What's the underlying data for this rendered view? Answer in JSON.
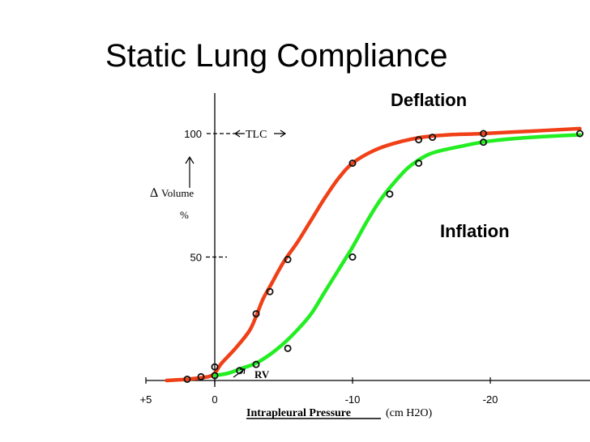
{
  "slide": {
    "title": "Static Lung Compliance"
  },
  "chart_data": {
    "type": "line",
    "title": "Static Lung Compliance",
    "xlabel": "Intrapleural Pressure",
    "xlabel_units": "(cm H2O)",
    "ylabel": "Volume",
    "ylabel_prefix": "Δ",
    "ylabel_units": "%",
    "x_ticks": [
      5,
      0,
      -10,
      -20
    ],
    "x_tick_labels": [
      "+5",
      "0",
      "-10",
      "-20"
    ],
    "y_ticks": [
      50,
      100
    ],
    "y_tick_labels": [
      "50",
      "100"
    ],
    "xlim": [
      6,
      -27
    ],
    "ylim": [
      -3,
      112
    ],
    "reference_lines": [
      {
        "label": "TLC",
        "y": 100
      },
      {
        "label": "RV",
        "y": 2
      }
    ],
    "series": [
      {
        "name": "Deflation",
        "color": "#f04018",
        "x": [
          3.5,
          2.0,
          0.5,
          0.0,
          -0.5,
          -1.5,
          -2.5,
          -3.0,
          -3.5,
          -4.0,
          -5.0,
          -6.0,
          -7.0,
          -8.0,
          -9.0,
          -10.0,
          -11.5,
          -13.0,
          -15.0,
          -17.0,
          -19.5,
          -23.0,
          -26.5
        ],
        "y": [
          0,
          0.5,
          1.5,
          3,
          7,
          13,
          20,
          26,
          33,
          38,
          48,
          56,
          65,
          74,
          82,
          88,
          93,
          96,
          98.5,
          99.5,
          100,
          101,
          102
        ],
        "markers_x": [
          2.0,
          0.0,
          -3.0,
          -4.0,
          -5.3,
          -10.0,
          -14.8,
          -15.8,
          -19.5
        ],
        "markers_y": [
          0.5,
          5.5,
          27,
          36,
          49,
          88,
          97.5,
          98.5,
          100
        ]
      },
      {
        "name": "Inflation",
        "color": "#22ee22",
        "x": [
          0.0,
          -1.0,
          -2.0,
          -3.0,
          -4.0,
          -5.0,
          -6.0,
          -7.0,
          -8.0,
          -9.0,
          -10.0,
          -11.0,
          -12.0,
          -13.0,
          -14.0,
          -15.0,
          -16.0,
          -18.0,
          -20.0,
          -23.0,
          -26.5
        ],
        "y": [
          2,
          3,
          5,
          7,
          10.5,
          15,
          20.5,
          27,
          36,
          45,
          54,
          64,
          73,
          80,
          86,
          90,
          92.5,
          95,
          97,
          98.5,
          99.5
        ],
        "markers_x": [
          0.0,
          1.0,
          -1.8,
          -3.0,
          -5.3,
          -10.0,
          -12.7,
          -14.8,
          -19.5,
          -26.5
        ],
        "markers_y": [
          2,
          1.5,
          4,
          6.5,
          13,
          50,
          75.5,
          88,
          96.5,
          100
        ]
      }
    ],
    "annotations": [
      "Deflation",
      "Inflation",
      "TLC",
      "RV"
    ],
    "grid": false,
    "legend": "none"
  }
}
